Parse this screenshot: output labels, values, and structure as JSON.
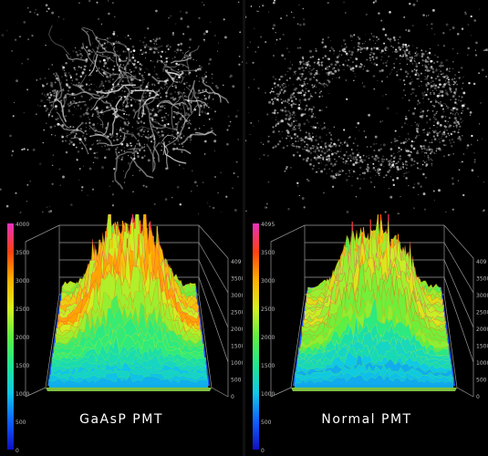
{
  "panels": [
    {
      "caption": "GaAsP PMT",
      "micrograph": {
        "style": "tubular network",
        "spot_count": 1200,
        "seed": 17
      },
      "surface": {
        "peak_level": 0.78,
        "seed": 5
      },
      "scale": {
        "colorbar_ticks": [
          "4000",
          "3500",
          "3000",
          "2500",
          "2000",
          "1500",
          "1000",
          "500",
          "0"
        ],
        "side_ticks": [
          "409",
          "3500",
          "3000",
          "2500",
          "2000",
          "1500",
          "1000",
          "500",
          "0"
        ]
      }
    },
    {
      "caption": "Normal PMT",
      "micrograph": {
        "style": "punctate speckle",
        "spot_count": 1700,
        "seed": 29
      },
      "surface": {
        "peak_level": 0.68,
        "seed": 11
      },
      "scale": {
        "colorbar_ticks": [
          "4095",
          "3500",
          "3000",
          "2500",
          "2000",
          "1500",
          "1000",
          "500",
          "0"
        ],
        "side_ticks": [
          "409",
          "3500",
          "3000",
          "2500",
          "2000",
          "1500",
          "1000",
          "500",
          "0"
        ]
      }
    }
  ],
  "colors": {
    "background": "#000000",
    "gridline": "#9a9a9a",
    "floor": "#7fbf3f",
    "colormap": [
      "#1010c0",
      "#1060ff",
      "#10c8e8",
      "#20e890",
      "#60f040",
      "#d8f020",
      "#ffb000",
      "#ff4010",
      "#e830c0"
    ]
  }
}
